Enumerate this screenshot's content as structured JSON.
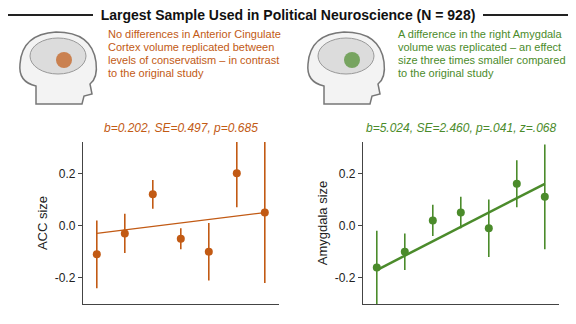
{
  "title": "Largest Sample Used in Political Neuroscience (N = 928)",
  "chart_data": [
    {
      "type": "scatter",
      "subtitle": "No differences in Anterior Cingulate Cortex volume replicated between levels of conservatism – in contrast to the original study",
      "annotation": "b=0.202, SE=0.497, p=0.685",
      "y_label": "ACC size",
      "color": "#c25a14",
      "marker": "circle",
      "tick_labels": "y",
      "grid": false,
      "x": [
        1,
        2,
        3,
        4,
        5,
        6,
        7
      ],
      "values": [
        -0.11,
        -0.03,
        0.12,
        -0.05,
        -0.1,
        0.2,
        0.05
      ],
      "errors": [
        0.13,
        0.075,
        0.055,
        0.04,
        0.11,
        0.13,
        0.27
      ],
      "trend": {
        "x": [
          1,
          7
        ],
        "values": [
          -0.03,
          0.05
        ]
      },
      "xlim": [
        0.5,
        7.5
      ],
      "ylim": [
        -0.3,
        0.32
      ],
      "yticks": [
        -0.2,
        {
          "value": 0,
          "label": "0.0"
        },
        0.2
      ]
    },
    {
      "type": "scatter",
      "subtitle": "A difference in the right Amygdala volume was replicated – an effect size three times smaller compared to the original study",
      "annotation": "b=5.024, SE=2.460, p=.041, z=.068",
      "y_label": "Amygdala size",
      "color": "#4b8b2b",
      "marker": "circle",
      "tick_labels": "y",
      "grid": false,
      "x": [
        1,
        2,
        3,
        4,
        5,
        6,
        7
      ],
      "values": [
        -0.16,
        -0.1,
        0.02,
        0.05,
        -0.01,
        0.16,
        0.11
      ],
      "errors": [
        0.14,
        0.07,
        0.06,
        0.06,
        0.11,
        0.09,
        0.2
      ],
      "trend": {
        "x": [
          1,
          7
        ],
        "values": [
          -0.17,
          0.16
        ]
      },
      "xlim": [
        0.5,
        7.5
      ],
      "ylim": [
        -0.3,
        0.32
      ],
      "yticks": [
        -0.2,
        {
          "value": 0,
          "label": "0.0"
        },
        0.2
      ]
    }
  ]
}
